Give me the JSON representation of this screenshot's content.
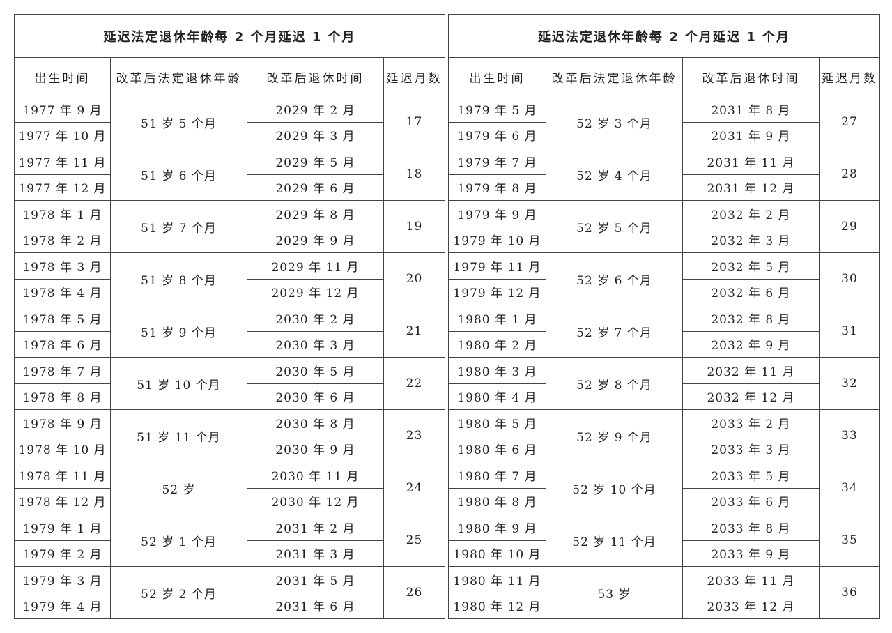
{
  "tables": [
    {
      "title": "延迟法定退休年龄每 2 个月延迟 1 个月",
      "headers": [
        "出生时间",
        "改革后法定退休年龄",
        "改革后退休时间",
        "延迟月数"
      ],
      "groups": [
        {
          "birth": [
            "1977 年 9 月",
            "1977 年 10 月"
          ],
          "age": "51 岁 5 个月",
          "retire": [
            "2029 年 2 月",
            "2029 年 3 月"
          ],
          "delay": "17"
        },
        {
          "birth": [
            "1977 年 11 月",
            "1977 年 12 月"
          ],
          "age": "51 岁 6 个月",
          "retire": [
            "2029 年 5 月",
            "2029 年 6 月"
          ],
          "delay": "18"
        },
        {
          "birth": [
            "1978 年 1 月",
            "1978 年 2 月"
          ],
          "age": "51 岁 7 个月",
          "retire": [
            "2029 年 8 月",
            "2029 年 9 月"
          ],
          "delay": "19"
        },
        {
          "birth": [
            "1978 年 3 月",
            "1978 年 4 月"
          ],
          "age": "51 岁 8 个月",
          "retire": [
            "2029 年 11 月",
            "2029 年 12 月"
          ],
          "delay": "20"
        },
        {
          "birth": [
            "1978 年 5 月",
            "1978 年 6 月"
          ],
          "age": "51 岁 9 个月",
          "retire": [
            "2030 年 2 月",
            "2030 年 3 月"
          ],
          "delay": "21"
        },
        {
          "birth": [
            "1978 年 7 月",
            "1978 年 8 月"
          ],
          "age": "51 岁 10 个月",
          "retire": [
            "2030 年 5 月",
            "2030 年 6 月"
          ],
          "delay": "22"
        },
        {
          "birth": [
            "1978 年 9 月",
            "1978 年 10 月"
          ],
          "age": "51 岁 11 个月",
          "retire": [
            "2030 年 8 月",
            "2030 年 9 月"
          ],
          "delay": "23"
        },
        {
          "birth": [
            "1978 年 11 月",
            "1978 年 12 月"
          ],
          "age": "52 岁",
          "retire": [
            "2030 年 11 月",
            "2030 年 12 月"
          ],
          "delay": "24"
        },
        {
          "birth": [
            "1979 年 1 月",
            "1979 年 2 月"
          ],
          "age": "52 岁 1 个月",
          "retire": [
            "2031 年 2 月",
            "2031 年 3 月"
          ],
          "delay": "25"
        },
        {
          "birth": [
            "1979 年 3 月",
            "1979 年 4 月"
          ],
          "age": "52 岁 2 个月",
          "retire": [
            "2031 年 5 月",
            "2031 年 6 月"
          ],
          "delay": "26"
        }
      ]
    },
    {
      "title": "延迟法定退休年龄每 2 个月延迟 1 个月",
      "headers": [
        "出生时间",
        "改革后法定退休年龄",
        "改革后退休时间",
        "延迟月数"
      ],
      "groups": [
        {
          "birth": [
            "1979 年 5 月",
            "1979 年 6 月"
          ],
          "age": "52 岁 3 个月",
          "retire": [
            "2031 年 8 月",
            "2031 年 9 月"
          ],
          "delay": "27"
        },
        {
          "birth": [
            "1979 年 7 月",
            "1979 年 8 月"
          ],
          "age": "52 岁 4 个月",
          "retire": [
            "2031 年 11 月",
            "2031 年 12 月"
          ],
          "delay": "28"
        },
        {
          "birth": [
            "1979 年 9 月",
            "1979 年 10 月"
          ],
          "age": "52 岁 5 个月",
          "retire": [
            "2032 年 2 月",
            "2032 年 3 月"
          ],
          "delay": "29"
        },
        {
          "birth": [
            "1979 年 11 月",
            "1979 年 12 月"
          ],
          "age": "52 岁 6 个月",
          "retire": [
            "2032 年 5 月",
            "2032 年 6 月"
          ],
          "delay": "30"
        },
        {
          "birth": [
            "1980 年 1 月",
            "1980 年 2 月"
          ],
          "age": "52 岁 7 个月",
          "retire": [
            "2032 年 8 月",
            "2032 年 9 月"
          ],
          "delay": "31"
        },
        {
          "birth": [
            "1980 年 3 月",
            "1980 年 4 月"
          ],
          "age": "52 岁 8 个月",
          "retire": [
            "2032 年 11 月",
            "2032 年 12 月"
          ],
          "delay": "32"
        },
        {
          "birth": [
            "1980 年 5 月",
            "1980 年 6 月"
          ],
          "age": "52 岁 9 个月",
          "retire": [
            "2033 年 2 月",
            "2033 年 3 月"
          ],
          "delay": "33"
        },
        {
          "birth": [
            "1980 年 7 月",
            "1980 年 8 月"
          ],
          "age": "52 岁 10 个月",
          "retire": [
            "2033 年 5 月",
            "2033 年 6 月"
          ],
          "delay": "34"
        },
        {
          "birth": [
            "1980 年 9 月",
            "1980 年 10 月"
          ],
          "age": "52 岁 11 个月",
          "retire": [
            "2033 年 8 月",
            "2033 年 9 月"
          ],
          "delay": "35"
        },
        {
          "birth": [
            "1980 年 11 月",
            "1980 年 12 月"
          ],
          "age": "53 岁",
          "retire": [
            "2033 年 11 月",
            "2033 年 12 月"
          ],
          "delay": "36"
        }
      ]
    }
  ]
}
